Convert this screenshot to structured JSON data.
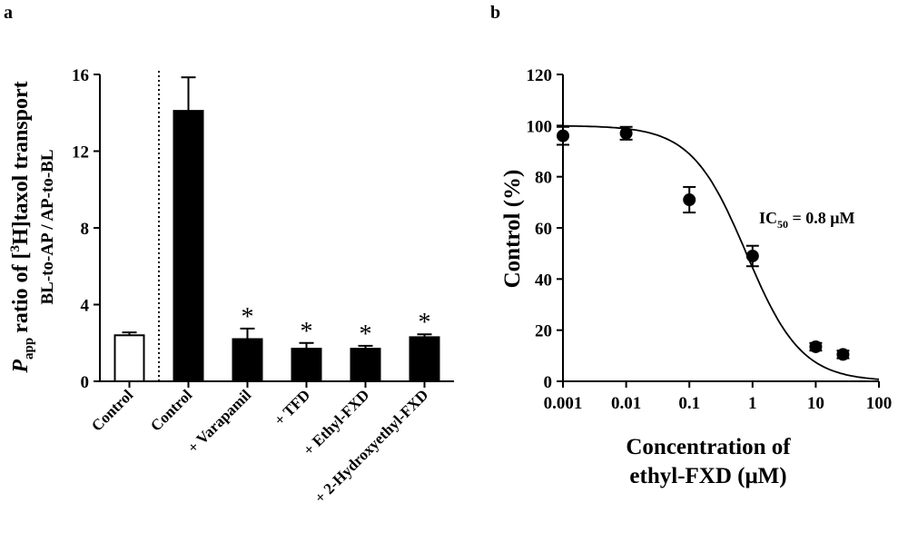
{
  "panels": {
    "a": "a",
    "b": "b"
  },
  "chart_data": [
    {
      "type": "bar",
      "panel": "a",
      "categories": [
        "Control",
        "Control",
        "+ Varapamil",
        "+ TFD",
        "+ Ethyl-FXD",
        "+ 2-Hydroxyethyl-FXD"
      ],
      "values": [
        2.4,
        14.1,
        2.2,
        1.7,
        1.7,
        2.3
      ],
      "errors": [
        0.15,
        1.75,
        0.55,
        0.3,
        0.15,
        0.15
      ],
      "significance": [
        "",
        "",
        "*",
        "*",
        "*",
        "*"
      ],
      "bar_fill": [
        "open",
        "filled",
        "filled",
        "filled",
        "filled",
        "filled"
      ],
      "colors": {
        "filled": "#000000",
        "open": "#ffffff"
      },
      "separator_after_index": 0,
      "ylabel_main": "ratio of [",
      "ylabel_p": "P",
      "ylabel_sub": "app",
      "ylabel_sup": "3",
      "ylabel_rest": "H]taxol transport",
      "ylabel_2": "BL-to-AP / AP-to-BL",
      "ylim": [
        0,
        16
      ],
      "yticks": [
        "0",
        "4",
        "8",
        "12",
        "16"
      ]
    },
    {
      "type": "scatter",
      "panel": "b",
      "x": [
        0.001,
        0.01,
        0.1,
        1,
        10,
        27
      ],
      "y": [
        96,
        97,
        71,
        49,
        13.5,
        10.5
      ],
      "errors": [
        3.5,
        2.5,
        5,
        4,
        1.5,
        1.5
      ],
      "fit": {
        "model": "sigmoid dose-response",
        "ic50": 0.8,
        "top": 100,
        "bottom": 0
      },
      "annotation_pre": "IC",
      "annotation_sub": "50",
      "annotation_post": " = 0.8 μM",
      "xscale": "log",
      "xlim": [
        0.001,
        100
      ],
      "xticks": [
        "0.001",
        "0.01",
        "0.1",
        "1",
        "10",
        "100"
      ],
      "ylim": [
        0,
        120
      ],
      "yticks": [
        "0",
        "20",
        "40",
        "60",
        "80",
        "100",
        "120"
      ],
      "ylabel": "Control (%)",
      "xlabel_1": "Concentration of",
      "xlabel_2": "ethyl-FXD (μM)"
    }
  ]
}
